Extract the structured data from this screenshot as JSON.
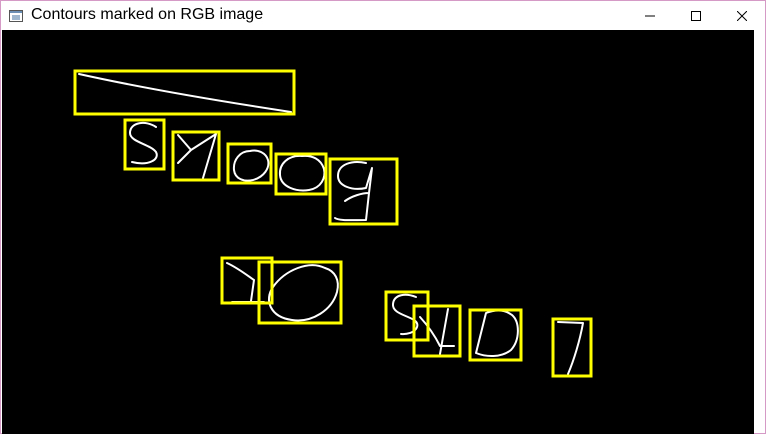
{
  "window": {
    "title": "Contours marked on RGB image",
    "controls": {
      "minimize": "minimize",
      "maximize": "maximize",
      "close": "close"
    }
  },
  "colors": {
    "canvas_background": "#000000",
    "box_stroke": "#ffff00",
    "contour_stroke": "#ffffff",
    "window_border": "#d59ac6"
  },
  "icons": {
    "app": "app-window-icon",
    "minimize": "minimize-icon",
    "maximize": "maximize-icon",
    "close": "close-icon"
  }
}
